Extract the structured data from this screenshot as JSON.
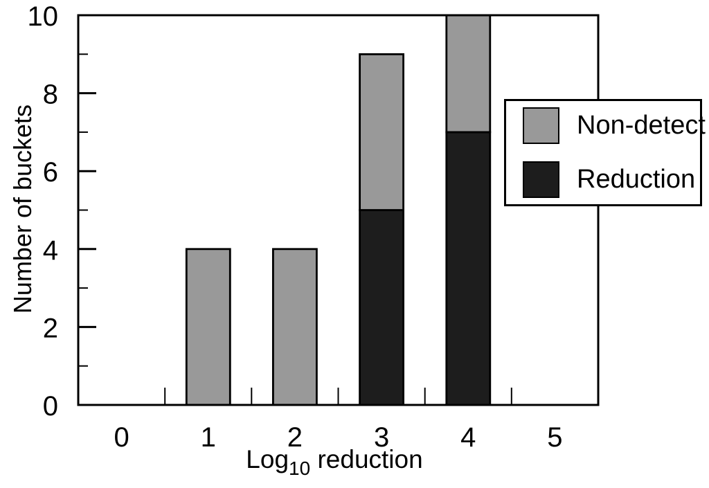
{
  "chart_data": {
    "type": "bar",
    "subtype": "stacked",
    "title": "",
    "categories": [
      "0",
      "1",
      "2",
      "3",
      "4",
      "5"
    ],
    "series": [
      {
        "name": "Reduction",
        "color": "#1d1d1d",
        "values": [
          0,
          0,
          0,
          5,
          7,
          0
        ]
      },
      {
        "name": "Non-detect",
        "color": "#999999",
        "values": [
          0,
          4,
          4,
          4,
          3,
          0
        ]
      }
    ],
    "xlabel": "Log10 reduction",
    "xlabel_parts": {
      "prefix": "Log",
      "sub": "10",
      "suffix": " reduction"
    },
    "ylabel": "Number of buckets",
    "ylim": [
      0,
      10
    ],
    "yticks_major": [
      0,
      2,
      4,
      6,
      8,
      10
    ],
    "yticks_minor": [
      1,
      3,
      5,
      7,
      9
    ],
    "xticks_minor": [
      0.5,
      1.5,
      2.5,
      3.5,
      4.5
    ],
    "grid": false,
    "frame_color": "#000000",
    "background": "#ffffff",
    "legend": {
      "position": "top-right",
      "items": [
        {
          "label": "Non-detect",
          "color": "#999999"
        },
        {
          "label": "Reduction",
          "color": "#1d1d1d"
        }
      ]
    }
  }
}
